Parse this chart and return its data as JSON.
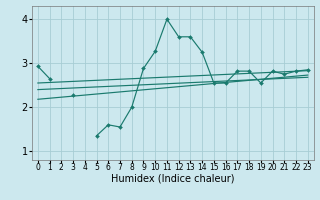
{
  "title": "",
  "xlabel": "Humidex (Indice chaleur)",
  "ylabel": "",
  "bg_color": "#cce8ee",
  "grid_color": "#a8cdd4",
  "line_color": "#1a7a6e",
  "x_data": [
    0,
    1,
    2,
    3,
    4,
    5,
    6,
    7,
    8,
    9,
    10,
    11,
    12,
    13,
    14,
    15,
    16,
    17,
    18,
    19,
    20,
    21,
    22,
    23
  ],
  "y_main": [
    2.93,
    2.65,
    null,
    2.27,
    null,
    1.35,
    1.6,
    1.55,
    2.0,
    2.88,
    3.27,
    4.0,
    3.6,
    3.6,
    3.25,
    2.55,
    2.55,
    2.82,
    2.82,
    2.55,
    2.82,
    2.75,
    2.82,
    2.85
  ],
  "ylim": [
    0.8,
    4.3
  ],
  "xlim": [
    -0.5,
    23.5
  ],
  "yticks": [
    1,
    2,
    3,
    4
  ],
  "xticks": [
    0,
    1,
    2,
    3,
    4,
    5,
    6,
    7,
    8,
    9,
    10,
    11,
    12,
    13,
    14,
    15,
    16,
    17,
    18,
    19,
    20,
    21,
    22,
    23
  ],
  "reg_lines": [
    {
      "x0": 0,
      "x1": 23,
      "y0": 2.55,
      "y1": 2.83
    },
    {
      "x0": 0,
      "x1": 23,
      "y0": 2.4,
      "y1": 2.68
    },
    {
      "x0": 0,
      "x1": 23,
      "y0": 2.18,
      "y1": 2.73
    }
  ],
  "xlabel_fontsize": 7,
  "tick_fontsize": 5.5
}
